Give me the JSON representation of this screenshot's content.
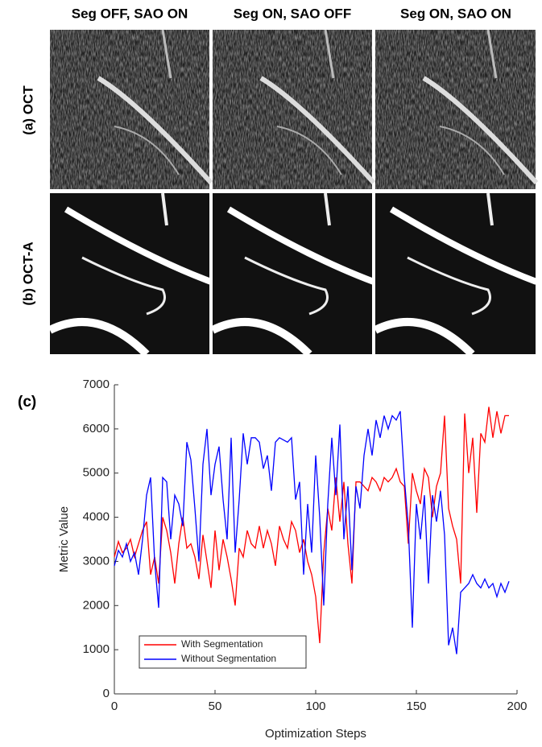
{
  "panels": {
    "columns": [
      "Seg OFF, SAO ON",
      "Seg ON, SAO OFF",
      "Seg ON, SAO ON"
    ],
    "rows": [
      "(a) OCT",
      "(b) OCT-A"
    ]
  },
  "chart_data": {
    "type": "line",
    "panel_label": "(c)",
    "xlabel": "Optimization Steps",
    "ylabel": "Metric Value",
    "x": [
      0,
      2,
      4,
      6,
      8,
      10,
      12,
      14,
      16,
      18,
      20,
      22,
      24,
      26,
      28,
      30,
      32,
      34,
      36,
      38,
      40,
      42,
      44,
      46,
      48,
      50,
      52,
      54,
      56,
      58,
      60,
      62,
      64,
      66,
      68,
      70,
      72,
      74,
      76,
      78,
      80,
      82,
      84,
      86,
      88,
      90,
      92,
      94,
      96,
      98,
      100,
      102,
      104,
      106,
      108,
      110,
      112,
      114,
      116,
      118,
      120,
      122,
      124,
      126,
      128,
      130,
      132,
      134,
      136,
      138,
      140,
      142,
      144,
      146,
      148,
      150,
      152,
      154,
      156,
      158,
      160,
      162,
      164,
      166,
      168,
      170,
      172,
      174,
      176,
      178,
      180,
      182,
      184,
      186,
      188,
      190,
      192,
      194,
      196
    ],
    "series": [
      {
        "name": "With Segmentation",
        "color": "#ff0000",
        "values": [
          3100,
          3450,
          3200,
          3300,
          3500,
          3100,
          3400,
          3700,
          3900,
          2700,
          3100,
          2500,
          4000,
          3700,
          3200,
          2500,
          3400,
          4000,
          3300,
          3400,
          3100,
          2600,
          3600,
          3000,
          2400,
          3700,
          2800,
          3500,
          3100,
          2600,
          2000,
          3300,
          3100,
          3700,
          3400,
          3300,
          3800,
          3300,
          3700,
          3400,
          2900,
          3800,
          3500,
          3300,
          3900,
          3700,
          3200,
          3500,
          3000,
          2700,
          2200,
          1150,
          3200,
          4200,
          3700,
          4900,
          3900,
          4800,
          3400,
          2500,
          4800,
          4800,
          4700,
          4600,
          4900,
          4800,
          4600,
          4900,
          4800,
          4900,
          5100,
          4800,
          4700,
          3400,
          5000,
          4600,
          4300,
          5100,
          4900,
          4000,
          4700,
          5000,
          6300,
          4200,
          3800,
          3500,
          2500,
          6350,
          5000,
          5800,
          4100,
          5900,
          5700,
          6500,
          5800,
          6400,
          5900,
          6300,
          6300
        ]
      },
      {
        "name": "Without Segmentation",
        "color": "#0000ff",
        "values": [
          2900,
          3250,
          3100,
          3400,
          3000,
          3200,
          2700,
          3500,
          4500,
          4900,
          3000,
          1950,
          4900,
          4800,
          3500,
          4500,
          4300,
          3800,
          5700,
          5300,
          4200,
          3000,
          5200,
          6000,
          4500,
          5200,
          5600,
          4400,
          3500,
          5800,
          3200,
          4400,
          5900,
          5200,
          5800,
          5800,
          5700,
          5100,
          5400,
          4600,
          5700,
          5800,
          5750,
          5700,
          5800,
          4400,
          4800,
          2700,
          4300,
          3200,
          5400,
          4000,
          2000,
          4300,
          5800,
          4500,
          6100,
          3500,
          4700,
          2800,
          4700,
          4200,
          5400,
          6000,
          5400,
          6200,
          5800,
          6300,
          6000,
          6300,
          6200,
          6400,
          4900,
          3800,
          1500,
          4300,
          3500,
          4500,
          2500,
          4500,
          3900,
          4600,
          3600,
          1100,
          1500,
          900,
          2300,
          2400,
          2500,
          2700,
          2500,
          2400,
          2600,
          2400,
          2500,
          2200,
          2500,
          2300,
          2550
        ]
      }
    ],
    "xlim": [
      0,
      200
    ],
    "ylim": [
      0,
      7000
    ],
    "xticks": [
      0,
      50,
      100,
      150,
      200
    ],
    "yticks": [
      0,
      1000,
      2000,
      3000,
      4000,
      5000,
      6000,
      7000
    ],
    "legend": "lower left"
  }
}
